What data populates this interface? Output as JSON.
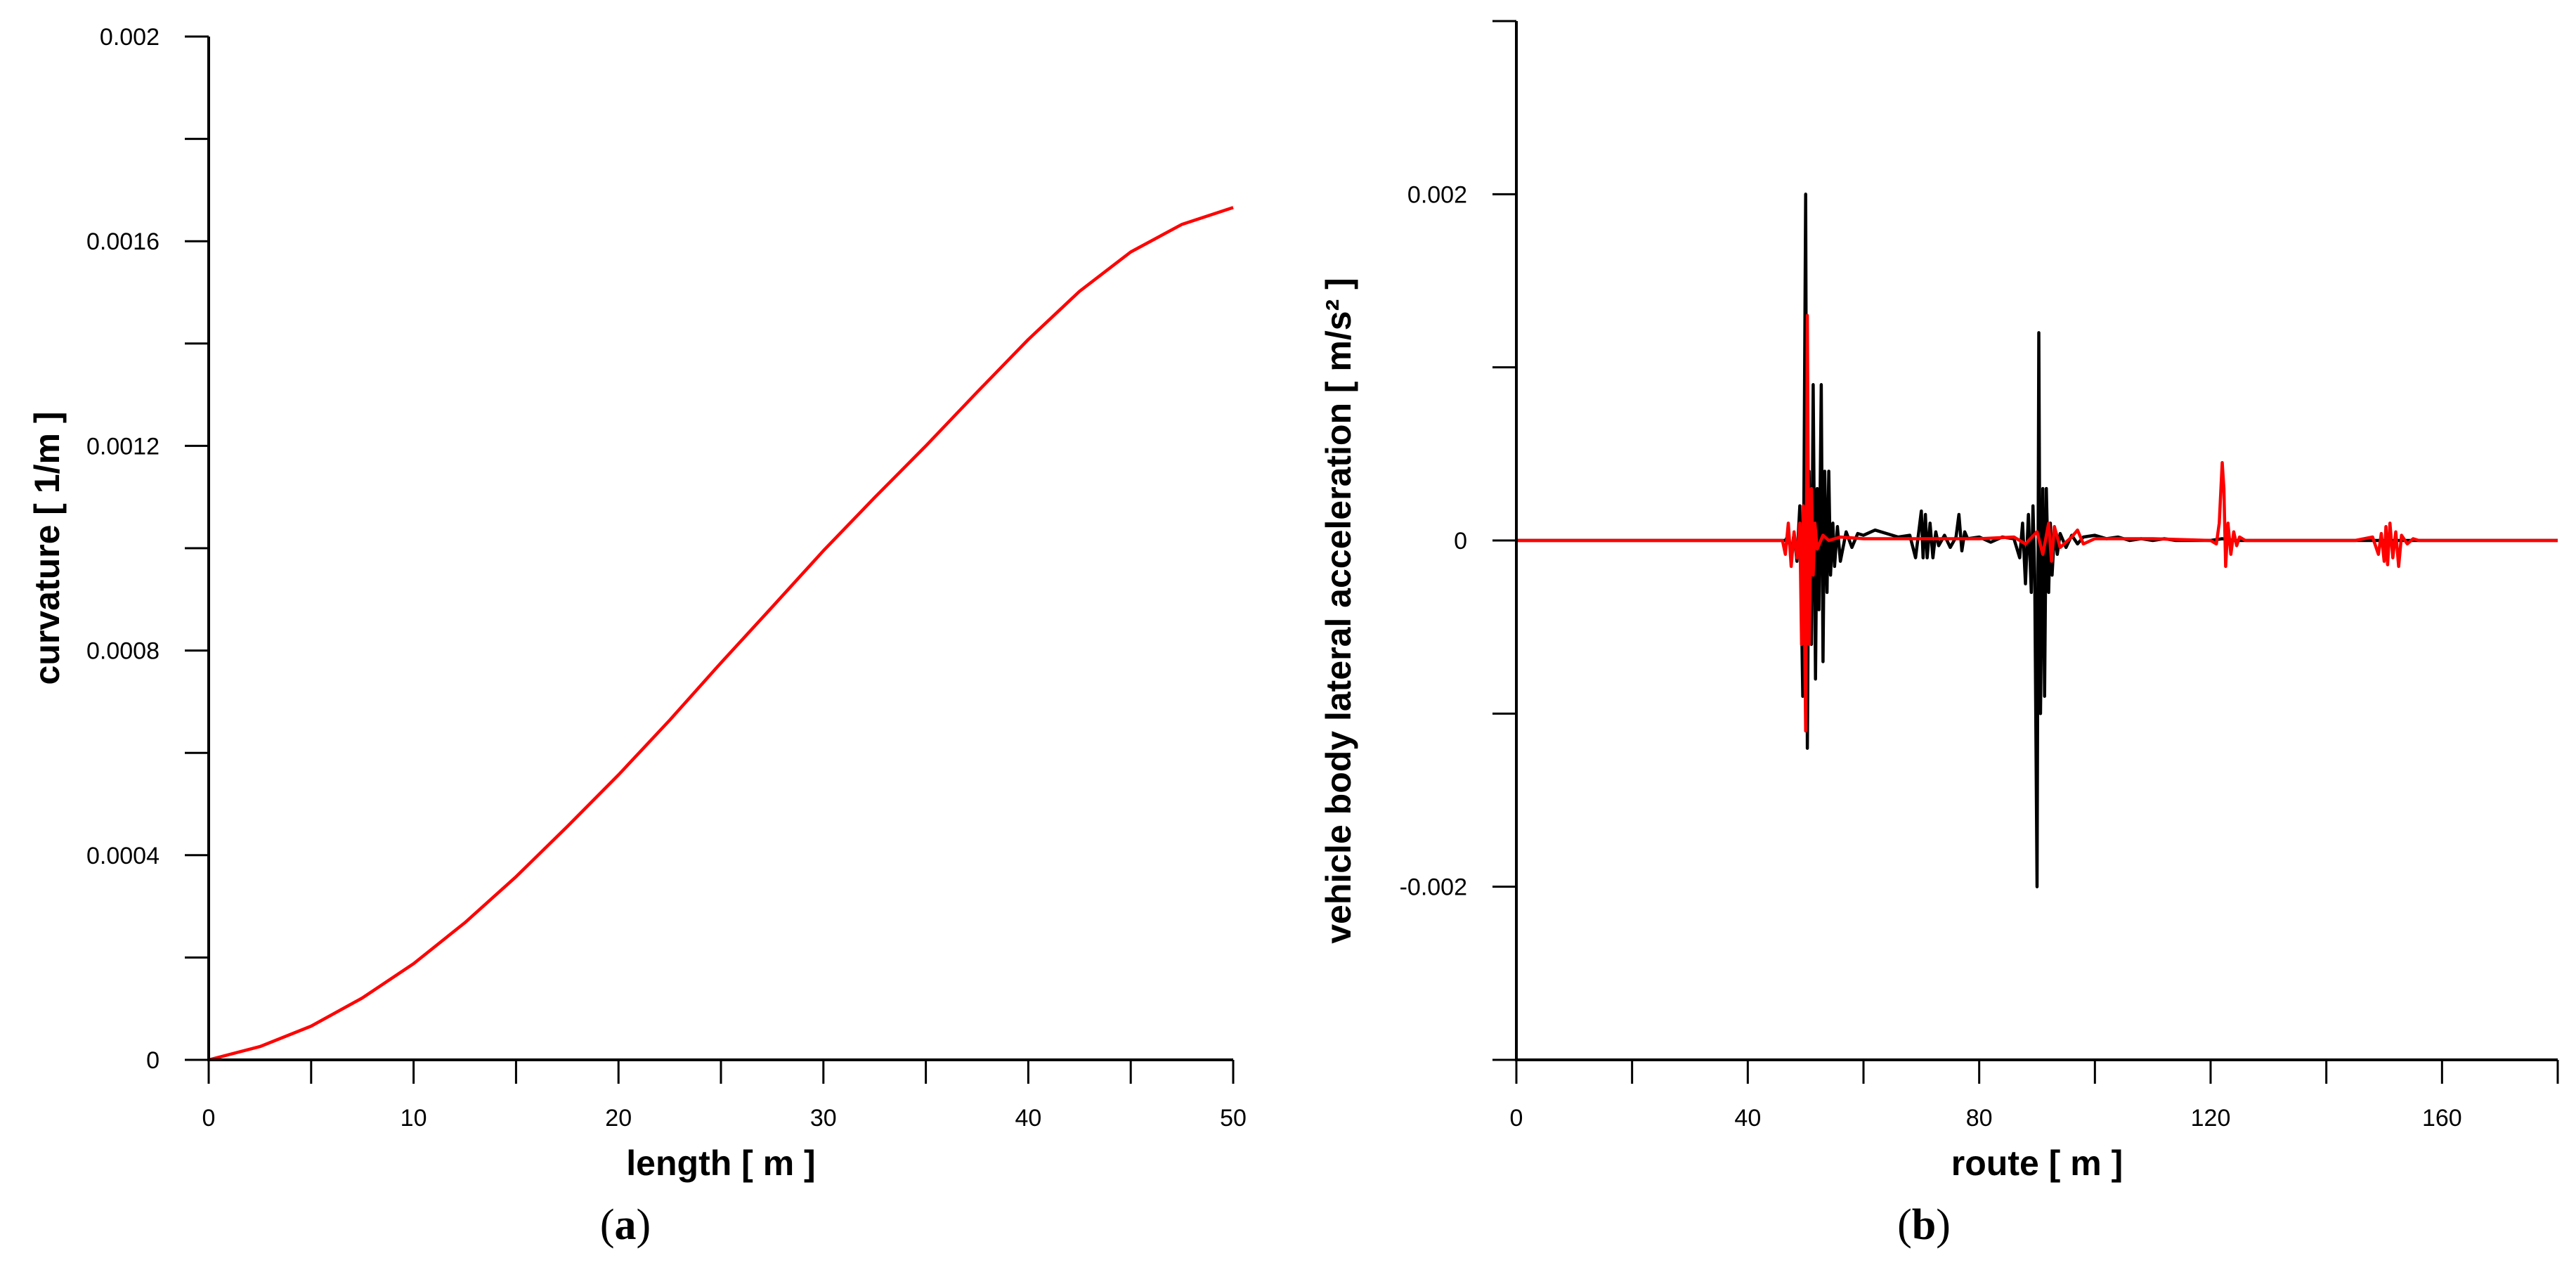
{
  "chart_data": [
    {
      "type": "line",
      "panel_label": "(a)",
      "panel_letter": "a",
      "xlabel": "length [ m ]",
      "ylabel": "curvature [ 1/m ]",
      "xlim": [
        0,
        50
      ],
      "ylim": [
        0,
        0.002
      ],
      "x_ticks": [
        "0",
        "10",
        "20",
        "30",
        "40",
        "50"
      ],
      "y_ticks": [
        "0",
        "0.0004",
        "0.0008",
        "0.0012",
        "0.0016",
        "0.002"
      ],
      "x_minor_step": 5,
      "y_minor_step": 0.0002,
      "grid": false,
      "series": [
        {
          "color": "#ff0000",
          "x": [
            0,
            2.5,
            5,
            7.5,
            10,
            12.5,
            15,
            17.5,
            20,
            22.5,
            25,
            27.5,
            30,
            32.5,
            35,
            37.5,
            40,
            42.5,
            45,
            47.5,
            50
          ],
          "y": [
            0,
            2.6e-05,
            6.6e-05,
            0.000121,
            0.000188,
            0.000268,
            0.000358,
            0.000456,
            0.000557,
            0.000664,
            0.000776,
            0.000885,
            0.000995,
            0.001099,
            0.0012,
            0.001305,
            0.001408,
            0.001502,
            0.001579,
            0.001633,
            0.001666
          ]
        }
      ]
    },
    {
      "type": "line",
      "panel_label": "(b)",
      "panel_letter": "b",
      "xlabel": "route [ m ]",
      "ylabel": "vehicle body lateral acceleration [ m/s² ]",
      "xlim": [
        0,
        180
      ],
      "ylim": [
        -0.003,
        0.003
      ],
      "x_ticks": [
        "0",
        "40",
        "80",
        "120",
        "160"
      ],
      "y_ticks": [
        "-0.002",
        "0",
        "0.002"
      ],
      "x_minor_step": 20,
      "y_minor_step": 0.001,
      "grid": false,
      "series": [
        {
          "color": "#000000",
          "x": [
            0,
            46.5,
            47,
            47.5,
            48,
            48.5,
            49,
            49.5,
            50,
            50.3,
            50.6,
            51,
            51.3,
            51.7,
            52,
            52.3,
            52.7,
            53,
            53.3,
            53.7,
            54,
            54.3,
            54.7,
            55,
            55.5,
            56,
            57,
            58,
            59,
            60,
            62,
            64,
            66,
            68,
            69,
            70,
            70.3,
            70.7,
            71,
            71.5,
            72,
            72.5,
            73,
            74,
            75,
            76,
            76.5,
            77,
            77.5,
            78,
            80,
            82,
            84,
            86,
            87,
            87.5,
            88,
            88.5,
            89,
            89.3,
            89.6,
            90,
            90.3,
            90.6,
            91,
            91.3,
            91.6,
            92,
            92.3,
            92.6,
            93,
            93.5,
            94,
            95,
            96,
            97,
            98,
            100,
            102,
            104,
            106,
            108,
            110,
            112,
            114,
            116,
            118,
            120,
            122,
            124,
            126,
            128,
            130,
            135,
            140,
            145,
            150,
            155,
            160,
            165,
            170,
            175,
            180
          ],
          "y": [
            0,
            0,
            3e-05,
            -8e-05,
            4e-05,
            -0.00012,
            0.0002,
            -0.0009,
            0.002,
            -0.0012,
            0.0004,
            -0.0006,
            0.0009,
            -0.0008,
            0.0003,
            -0.0004,
            0.0009,
            -0.0007,
            0.0004,
            -0.0003,
            0.0004,
            -0.0002,
            0.0001,
            -0.00015,
            8e-05,
            -0.00012,
            5e-05,
            -4e-05,
            4e-05,
            3e-05,
            6e-05,
            4e-05,
            2e-05,
            3e-05,
            -0.0001,
            0.00017,
            -0.0001,
            0.00015,
            -0.0001,
            0.0001,
            -0.0001,
            5e-05,
            -3e-05,
            3e-05,
            -4e-05,
            2e-05,
            0.00015,
            -6e-05,
            5e-05,
            1e-05,
            2e-05,
            -1e-05,
            2e-05,
            1e-05,
            -0.0001,
            0.0001,
            -0.00025,
            0.00015,
            -0.0003,
            0.0002,
            -0.0002,
            -0.002,
            0.0012,
            -0.001,
            0.0003,
            -0.0009,
            0.0003,
            -0.0003,
            0.0001,
            -0.0002,
            5e-05,
            -8e-05,
            4e-05,
            -4e-05,
            3e-05,
            -2e-05,
            2e-05,
            3e-05,
            1e-05,
            2e-05,
            0,
            1e-05,
            0,
            1e-05,
            0,
            0,
            0,
            0,
            1e-05,
            0,
            0,
            0,
            0,
            0,
            0,
            0,
            0,
            0,
            0,
            0,
            0,
            0,
            0
          ]
        },
        {
          "color": "#ff0000",
          "x": [
            0,
            46,
            46.5,
            47,
            47.5,
            48,
            48.5,
            49,
            49.3,
            49.6,
            50,
            50.3,
            50.6,
            51,
            51.3,
            51.6,
            52,
            53,
            54,
            56,
            60,
            70,
            80,
            86,
            88,
            90,
            91,
            92,
            92.5,
            93,
            94,
            96,
            97,
            98,
            100,
            110,
            120,
            121,
            121.5,
            122,
            122.3,
            122.6,
            123,
            123.5,
            124,
            124.5,
            125,
            126,
            128,
            135,
            140,
            145,
            148,
            149,
            149.5,
            150,
            150.3,
            150.6,
            151,
            151.5,
            152,
            152.5,
            153,
            154,
            155,
            156,
            160,
            170,
            180
          ],
          "y": [
            0,
            0,
            -8e-05,
            0.0001,
            -0.00015,
            5e-05,
            -0.0001,
            0.0001,
            -0.0006,
            0.0002,
            -0.0011,
            0.0013,
            -0.0006,
            0.0003,
            -0.0002,
            0.0001,
            -5e-05,
            3e-05,
            0,
            2e-05,
            1e-05,
            1e-05,
            1e-05,
            2e-05,
            -2e-05,
            5e-05,
            -8e-05,
            0.0001,
            -0.00012,
            8e-05,
            -4e-05,
            2e-05,
            6e-05,
            -2e-05,
            1e-05,
            1e-05,
            0,
            -2e-05,
            0.0001,
            0.00045,
            0.0003,
            -0.00015,
            0.0001,
            -8e-05,
            5e-05,
            -3e-05,
            2e-05,
            0,
            0,
            0,
            0,
            0,
            2e-05,
            -8e-05,
            4e-05,
            -0.00012,
            8e-05,
            -0.00014,
            0.0001,
            -0.0001,
            5e-05,
            -0.00015,
            3e-05,
            -2e-05,
            1e-05,
            0,
            0,
            0,
            0
          ]
        }
      ]
    }
  ]
}
